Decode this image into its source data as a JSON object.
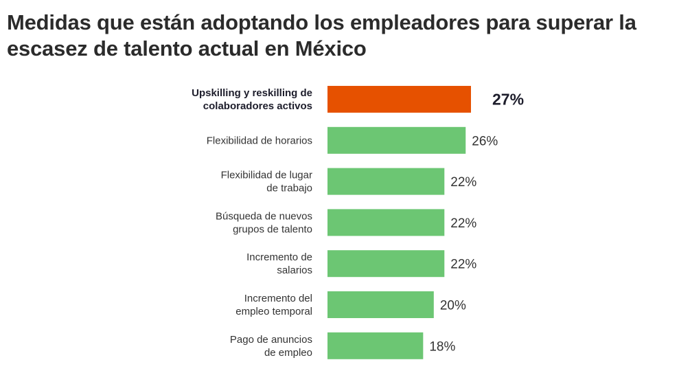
{
  "title": "Medidas que están adoptando los empleadores para superar la escasez de talento actual en México",
  "chart_data": {
    "type": "bar",
    "orientation": "horizontal",
    "categories": [
      [
        "Upskilling y reskilling de",
        "colaboradores activos"
      ],
      [
        "Flexibilidad de horarios"
      ],
      [
        "Flexibilidad de lugar",
        "de trabajo"
      ],
      [
        "Búsqueda de nuevos",
        "grupos de talento"
      ],
      [
        "Incremento de",
        "salarios"
      ],
      [
        "Incremento del",
        "empleo temporal"
      ],
      [
        "Pago de anuncios",
        "de empleo"
      ]
    ],
    "values": [
      27,
      26,
      22,
      22,
      22,
      20,
      18
    ],
    "value_labels": [
      "27%",
      "26%",
      "22%",
      "22%",
      "22%",
      "20%",
      "18%"
    ],
    "highlight_index": 0,
    "colors": {
      "highlight": "#E65100",
      "default": "#6CC673"
    },
    "xlim": [
      0,
      27
    ],
    "grid": false,
    "legend": "none"
  }
}
